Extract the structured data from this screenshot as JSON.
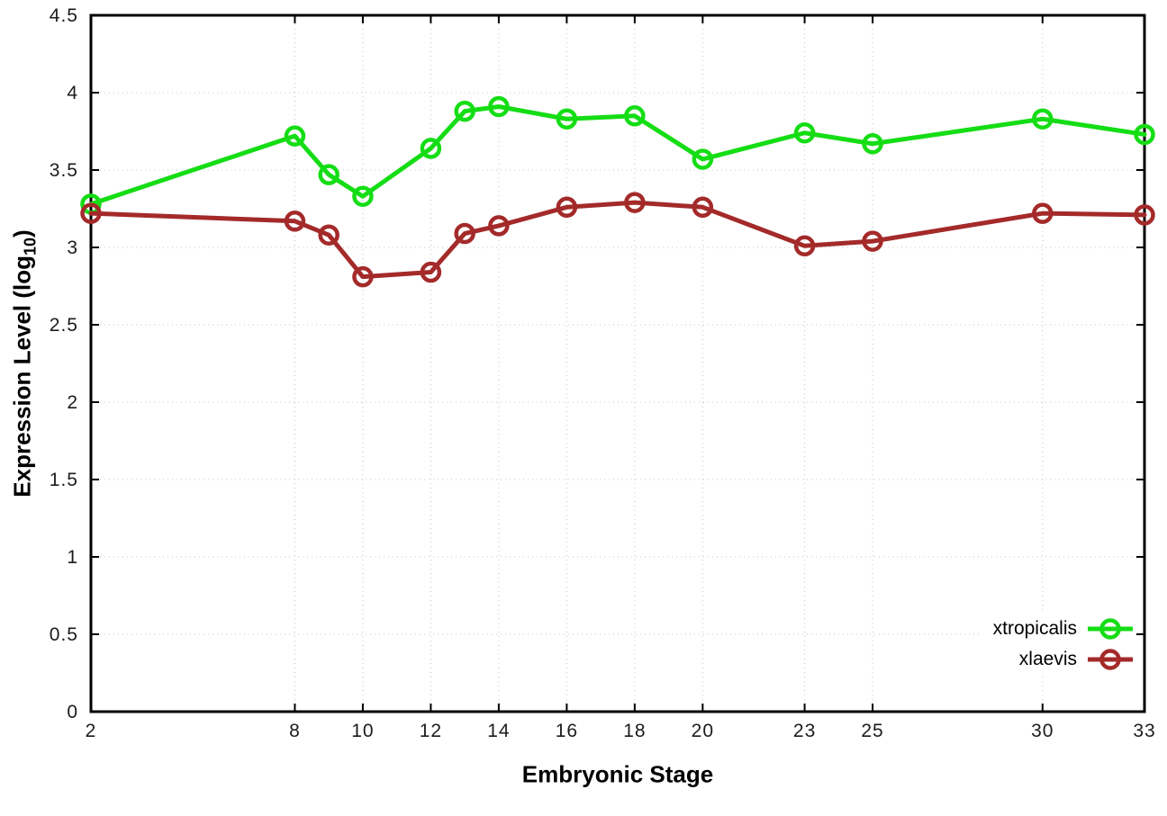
{
  "chart_data": {
    "type": "line",
    "title": "",
    "xlabel": "Embryonic Stage",
    "ylabel": "Expression Level (log10)",
    "ylabel_parts": {
      "pre": "Expression Level (log",
      "sub": "10",
      "post": ")"
    },
    "xlim": [
      2,
      33
    ],
    "ylim": [
      0,
      4.5
    ],
    "grid": true,
    "legend_position": "bottom-right",
    "x": [
      2,
      8,
      9,
      10,
      12,
      13,
      14,
      16,
      18,
      20,
      23,
      25,
      30,
      33
    ],
    "xticks": [
      2,
      8,
      10,
      12,
      14,
      16,
      18,
      20,
      23,
      25,
      30,
      33
    ],
    "xtick_labels": [
      "2",
      "8",
      "10",
      "12",
      "14",
      "16",
      "18",
      "20",
      "23",
      "25",
      "30",
      "33"
    ],
    "yticks": [
      0,
      0.5,
      1,
      1.5,
      2,
      2.5,
      3,
      3.5,
      4,
      4.5
    ],
    "ytick_labels": [
      "0",
      "0.5",
      "1",
      "1.5",
      "2",
      "2.5",
      "3",
      "3.5",
      "4",
      "4.5"
    ],
    "series": [
      {
        "name": "xtropicalis",
        "color": "#15dd15",
        "values": [
          3.28,
          3.72,
          3.47,
          3.33,
          3.64,
          3.88,
          3.91,
          3.83,
          3.85,
          3.57,
          3.74,
          3.67,
          3.83,
          3.73
        ]
      },
      {
        "name": "xlaevis",
        "color": "#a42a2a",
        "values": [
          3.22,
          3.17,
          3.08,
          2.81,
          2.84,
          3.09,
          3.14,
          3.26,
          3.29,
          3.26,
          3.01,
          3.04,
          3.22,
          3.21
        ]
      }
    ],
    "style": {
      "grid_color": "#c4c4c4",
      "axis_color": "#000000",
      "tick_text_color": "#1c1c1c"
    }
  }
}
